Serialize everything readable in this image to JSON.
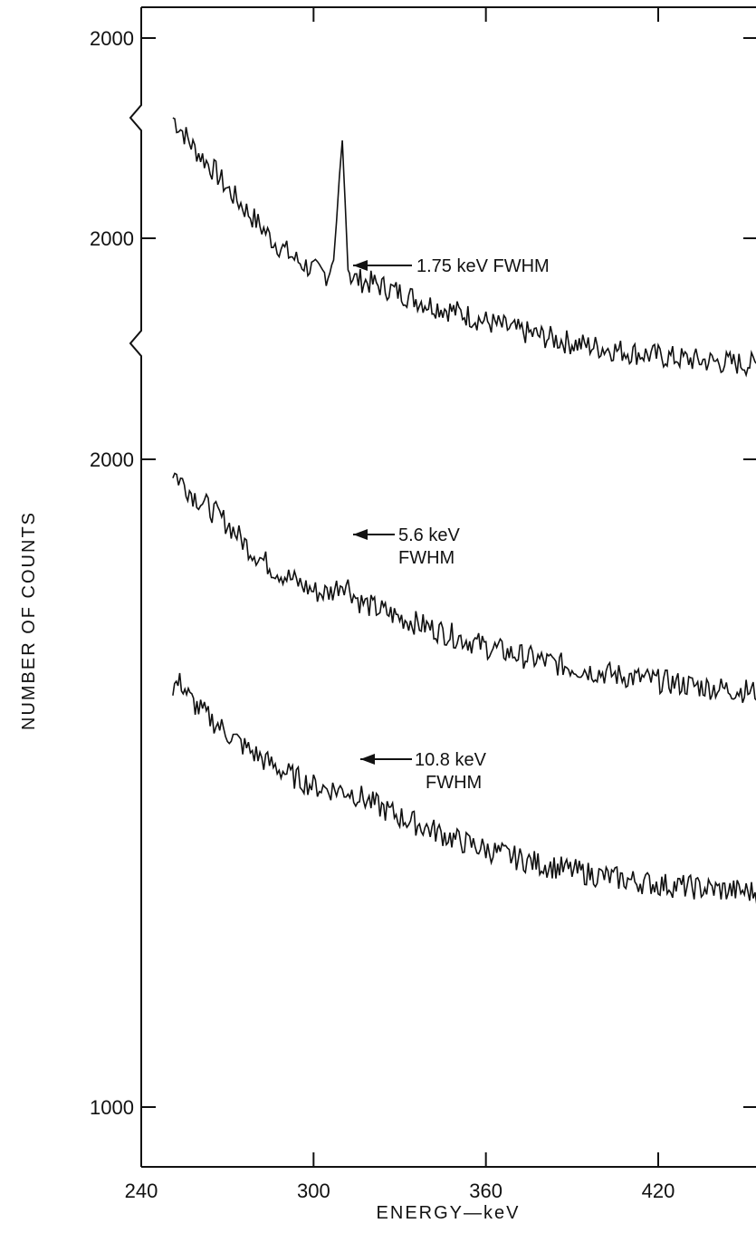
{
  "chart_data": {
    "type": "line",
    "xlabel": "ENERGY—keV",
    "ylabel": "NUMBER OF COUNTS",
    "xlim": [
      240,
      460
    ],
    "x_ticks": [
      240,
      300,
      360,
      420
    ],
    "y_tick_labels": [
      "2000",
      "2000",
      "2000",
      "1000"
    ],
    "grid": false,
    "axis_breaks": 2,
    "series": [
      {
        "offset_note": "upper spectrum (offset)",
        "fwhm_label": "1.75 keV FWHM",
        "x": [
          251,
          255,
          258,
          262,
          266,
          270,
          274,
          278,
          282,
          286,
          290,
          294,
          298,
          302,
          305,
          307,
          308,
          309,
          310,
          311,
          312,
          313,
          315,
          320,
          330,
          340,
          350,
          360,
          370,
          380,
          390,
          400,
          410,
          420,
          430,
          440,
          450,
          458
        ],
        "y": [
          2010,
          1985,
          1965,
          1945,
          1925,
          1900,
          1880,
          1860,
          1840,
          1820,
          1805,
          1790,
          1780,
          1770,
          1768,
          1790,
          1850,
          1920,
          1975,
          1880,
          1775,
          1765,
          1760,
          1755,
          1740,
          1722,
          1710,
          1695,
          1682,
          1672,
          1662,
          1655,
          1648,
          1642,
          1637,
          1633,
          1630,
          1627
        ]
      },
      {
        "fwhm_label": "5.6 keV FWHM",
        "x": [
          251,
          255,
          258,
          262,
          266,
          270,
          274,
          278,
          282,
          286,
          290,
          294,
          298,
          302,
          306,
          308,
          310,
          312,
          314,
          316,
          320,
          330,
          340,
          350,
          360,
          370,
          380,
          390,
          400,
          410,
          420,
          430,
          440,
          450,
          458
        ],
        "y": [
          1820,
          1800,
          1785,
          1770,
          1755,
          1740,
          1720,
          1700,
          1685,
          1670,
          1660,
          1650,
          1640,
          1633,
          1634,
          1642,
          1650,
          1645,
          1630,
          1620,
          1612,
          1595,
          1580,
          1565,
          1550,
          1538,
          1528,
          1518,
          1510,
          1503,
          1497,
          1491,
          1486,
          1482,
          1479
        ]
      },
      {
        "fwhm_label": "10.8 keV FWHM",
        "x": [
          251,
          254,
          257,
          260,
          264,
          268,
          272,
          276,
          280,
          284,
          288,
          292,
          296,
          300,
          304,
          308,
          312,
          316,
          320,
          330,
          340,
          350,
          360,
          370,
          380,
          390,
          400,
          410,
          420,
          430,
          440,
          450,
          458
        ],
        "y": [
          1650,
          1655,
          1630,
          1615,
          1600,
          1585,
          1570,
          1556,
          1544,
          1532,
          1522,
          1512,
          1504,
          1496,
          1492,
          1490,
          1488,
          1480,
          1470,
          1448,
          1430,
          1412,
          1398,
          1385,
          1374,
          1365,
          1357,
          1350,
          1344,
          1340,
          1336,
          1333,
          1331
        ]
      }
    ]
  }
}
